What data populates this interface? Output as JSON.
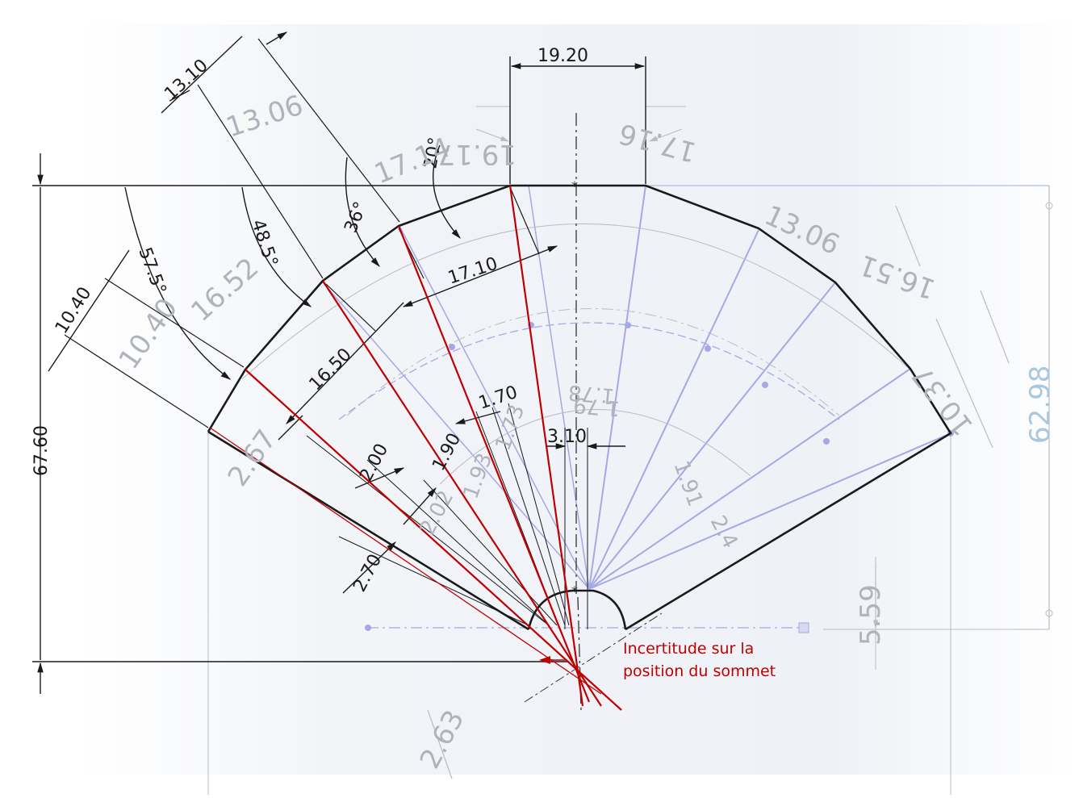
{
  "colors": {
    "outline": "#1a1a1a",
    "construction": "#a6a8e6",
    "reference": "#b0b3bb",
    "cyan_dimension": "#a9c7df",
    "highlight": "#c00000"
  },
  "dimensions": {
    "top_width": "19.20",
    "height": "67.60",
    "side_a": "13.10",
    "side_b": "10.40",
    "mid_a": "17.10",
    "mid_b": "16.50",
    "small_a": "1.70",
    "small_b": "3.10",
    "small_c": "2.00",
    "small_d": "1.90",
    "small_e": "2.70"
  },
  "angles": {
    "a1": "20°",
    "a2": "36°",
    "a3": "48.5°",
    "a4": "57.5°"
  },
  "reference_dims": {
    "top_width": "19.17",
    "side_upper": "13.06",
    "upper_left": "17.14",
    "upper_right": "17.16",
    "mid_left": "16.52",
    "mid_right": "16.51",
    "lower_left": "10.40",
    "lower_right": "10.37",
    "center_a": "1.78",
    "center_b": "1.73",
    "center_c": "1.79",
    "center_d": "1.91",
    "center_e": "1.93",
    "center_f": "2.02",
    "center_g": "2.67",
    "center_h": "2.4",
    "bottom": "2.63",
    "right_small": "5.59",
    "overall_height": "62.98"
  },
  "annotation": {
    "line1": "Incertitude sur la",
    "line2": "position du sommet"
  }
}
